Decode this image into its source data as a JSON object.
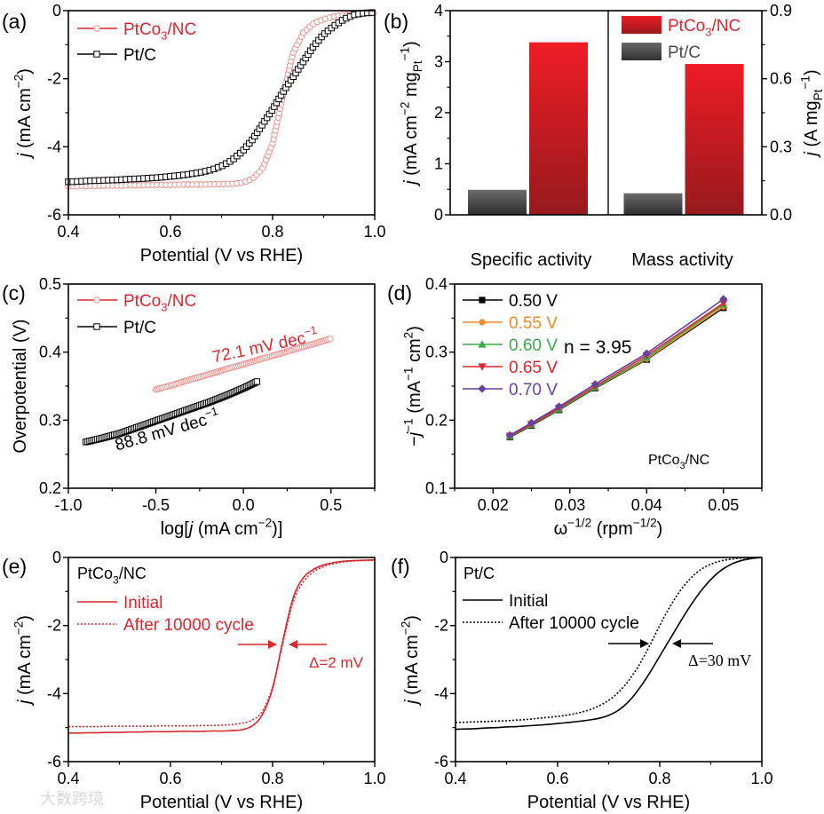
{
  "watermark": "大数跨境",
  "chart_data": [
    {
      "id": "a",
      "panel_label": "(a)",
      "type": "line",
      "xlim": [
        0.4,
        1.0
      ],
      "ylim": [
        -6,
        0
      ],
      "xticks": [
        0.4,
        0.6,
        0.8,
        1.0
      ],
      "xtick_labels": [
        "0.4",
        "0.6",
        "0.8",
        "1.0"
      ],
      "yticks": [
        -6,
        -4,
        -2,
        0
      ],
      "ytick_labels": [
        "-6",
        "-4",
        "-2",
        "0"
      ],
      "xlabel": [
        [
          "Potential (V vs RHE)",
          "n"
        ]
      ],
      "ylabel": [
        [
          "j",
          "i"
        ],
        [
          " (mA cm",
          "n"
        ],
        [
          "−2",
          "sup"
        ],
        [
          ")",
          "n"
        ]
      ],
      "legend": "top-left",
      "x": [
        0.4,
        0.42,
        0.44,
        0.46,
        0.48,
        0.5,
        0.52,
        0.54,
        0.56,
        0.58,
        0.6,
        0.62,
        0.64,
        0.66,
        0.68,
        0.7,
        0.72,
        0.74,
        0.76,
        0.78,
        0.8,
        0.82,
        0.84,
        0.86,
        0.88,
        0.9,
        0.92,
        0.94,
        0.96,
        0.98,
        1.0
      ],
      "series": [
        {
          "name": [
            [
              "PtCo",
              "n"
            ],
            [
              "3",
              "sub"
            ],
            [
              "/NC",
              "n"
            ]
          ],
          "color": "#d7282f",
          "marker_color": "#e8948f",
          "text_color": "#d7282f",
          "marker": "circle-open",
          "dash": "solid",
          "y": [
            -5.16,
            -5.16,
            -5.15,
            -5.15,
            -5.14,
            -5.14,
            -5.13,
            -5.13,
            -5.12,
            -5.12,
            -5.12,
            -5.11,
            -5.11,
            -5.11,
            -5.1,
            -5.1,
            -5.09,
            -5.06,
            -4.95,
            -4.65,
            -3.9,
            -2.5,
            -1.25,
            -0.65,
            -0.38,
            -0.25,
            -0.17,
            -0.13,
            -0.1,
            -0.08,
            -0.07
          ]
        },
        {
          "name": [
            [
              "Pt/C",
              "n"
            ]
          ],
          "color": "#000000",
          "marker_color": "#000000",
          "text_color": "#000000",
          "marker": "square-open",
          "dash": "solid",
          "y": [
            -5.03,
            -5.02,
            -5.0,
            -4.99,
            -4.98,
            -4.97,
            -4.95,
            -4.94,
            -4.92,
            -4.9,
            -4.87,
            -4.84,
            -4.8,
            -4.75,
            -4.68,
            -4.57,
            -4.4,
            -4.15,
            -3.8,
            -3.35,
            -2.9,
            -2.4,
            -1.95,
            -1.5,
            -1.05,
            -0.7,
            -0.45,
            -0.25,
            -0.12,
            -0.07,
            -0.05
          ]
        }
      ]
    },
    {
      "id": "b",
      "panel_label": "(b)",
      "type": "bar",
      "categories": [
        "Specific activity",
        "Mass activity"
      ],
      "ylim": [
        0,
        4
      ],
      "yticks": [
        0,
        1,
        2,
        3,
        4
      ],
      "ytick_labels": [
        "0",
        "1",
        "2",
        "3",
        "4"
      ],
      "ylim_right": [
        0,
        0.9
      ],
      "yticks_right": [
        0,
        0.3,
        0.6,
        0.9
      ],
      "ytick_labels_right": [
        "0.0",
        "0.3",
        "0.6",
        "0.9"
      ],
      "ylabel": [
        [
          "j",
          "i"
        ],
        [
          " (mA cm",
          "n"
        ],
        [
          "−2",
          "sup"
        ],
        [
          " mg",
          "n"
        ],
        [
          "Pt",
          "sub"
        ],
        [
          "−1",
          "sup"
        ],
        [
          ")",
          "n"
        ]
      ],
      "ylabel_right": [
        [
          "j",
          "i"
        ],
        [
          " (A mg",
          "n"
        ],
        [
          "Pt",
          "sub"
        ],
        [
          "−1",
          "sup"
        ],
        [
          ")",
          "n"
        ]
      ],
      "legend": "top-right",
      "series": [
        {
          "name": [
            [
              "Pt/C",
              "n"
            ]
          ],
          "color_top": "#6a6a6a",
          "color_bottom": "#2e2e2e",
          "text_color": "#4a4a4a",
          "values": [
            0.49,
            0.095
          ],
          "axis": [
            "left",
            "right"
          ]
        },
        {
          "name": [
            [
              "PtCo",
              "n"
            ],
            [
              "3",
              "sub"
            ],
            [
              "/NC",
              "n"
            ]
          ],
          "color_top": "#ee1c25",
          "color_bottom": "#961a1d",
          "text_color": "#d7282f",
          "values": [
            3.38,
            0.665
          ],
          "axis": [
            "left",
            "right"
          ]
        }
      ]
    },
    {
      "id": "c",
      "panel_label": "(c)",
      "type": "scatter",
      "xlim": [
        -1.0,
        0.75
      ],
      "ylim": [
        0.2,
        0.5
      ],
      "xticks": [
        -1.0,
        -0.5,
        0.0,
        0.5
      ],
      "xtick_labels": [
        "-1.0",
        "-0.5",
        "0.0",
        "0.5"
      ],
      "yticks": [
        0.2,
        0.3,
        0.4,
        0.5
      ],
      "ytick_labels": [
        "0.2",
        "0.3",
        "0.4",
        "0.5"
      ],
      "xlabel": [
        [
          "log[",
          "n"
        ],
        [
          "j",
          "i"
        ],
        [
          " (mA cm",
          "n"
        ],
        [
          "−2",
          "sup"
        ],
        [
          ")]",
          "n"
        ]
      ],
      "ylabel": [
        [
          "Overpotential (V)",
          "n"
        ]
      ],
      "legend": "top-left",
      "series": [
        {
          "name": [
            [
              "PtCo",
              "n"
            ],
            [
              "3",
              "sub"
            ],
            [
              "/NC",
              "n"
            ]
          ],
          "color": "#d7282f",
          "marker_color": "#e8948f",
          "text_color": "#d7282f",
          "marker": "circle-open",
          "dash": "solid",
          "x": [
            -0.5,
            -0.4,
            -0.3,
            -0.2,
            -0.1,
            0.0,
            0.1,
            0.2,
            0.3,
            0.4,
            0.5
          ],
          "y": [
            0.345,
            0.352,
            0.36,
            0.367,
            0.375,
            0.382,
            0.39,
            0.397,
            0.405,
            0.412,
            0.42
          ]
        },
        {
          "name": [
            [
              "Pt/C",
              "n"
            ]
          ],
          "color": "#000000",
          "marker_color": "#000000",
          "text_color": "#000000",
          "marker": "square-open",
          "dash": "solid",
          "x": [
            -0.9,
            -0.8,
            -0.7,
            -0.6,
            -0.5,
            -0.4,
            -0.3,
            -0.2,
            -0.1,
            0.0,
            0.08
          ],
          "y": [
            0.268,
            0.274,
            0.281,
            0.29,
            0.299,
            0.308,
            0.317,
            0.326,
            0.336,
            0.347,
            0.357
          ]
        }
      ],
      "annotations": [
        {
          "text": [
            [
              "72.1 mV dec",
              "n"
            ],
            [
              "−1",
              "sup"
            ]
          ],
          "color": "#d7282f"
        },
        {
          "text": [
            [
              "88.8 mV dec",
              "n"
            ],
            [
              "−1",
              "sup"
            ]
          ],
          "color": "#000000"
        }
      ]
    },
    {
      "id": "d",
      "panel_label": "(d)",
      "type": "line",
      "xlim": [
        0.015,
        0.055
      ],
      "ylim": [
        0.1,
        0.4
      ],
      "xticks": [
        0.02,
        0.03,
        0.04,
        0.05
      ],
      "xtick_labels": [
        "0.02",
        "0.03",
        "0.04",
        "0.05"
      ],
      "yticks": [
        0.1,
        0.2,
        0.3,
        0.4
      ],
      "ytick_labels": [
        "0.1",
        "0.2",
        "0.3",
        "0.4"
      ],
      "xlabel": [
        [
          "ω",
          "n"
        ],
        [
          "−1/2",
          "sup"
        ],
        [
          " (rpm",
          "n"
        ],
        [
          "−1/2",
          "sup"
        ],
        [
          ")",
          "n"
        ]
      ],
      "ylabel": [
        [
          "−",
          "n"
        ],
        [
          "j",
          "i"
        ],
        [
          "−1",
          "sup"
        ],
        [
          " (mA",
          "n"
        ],
        [
          "−1",
          "sup"
        ],
        [
          " cm",
          "n"
        ],
        [
          "2",
          "sup"
        ],
        [
          ")",
          "n"
        ]
      ],
      "legend": "top-left",
      "x": [
        0.0222,
        0.025,
        0.0286,
        0.0333,
        0.04,
        0.05
      ],
      "series": [
        {
          "name": [
            [
              "0.50 V",
              "n"
            ]
          ],
          "color": "#000000",
          "marker_color": "#000000",
          "text_color": "#000000",
          "marker": "square",
          "dash": "solid",
          "y": [
            0.175,
            0.192,
            0.215,
            0.247,
            0.289,
            0.365
          ]
        },
        {
          "name": [
            [
              "0.55 V",
              "n"
            ]
          ],
          "color": "#f08a24",
          "marker_color": "#f08a24",
          "text_color": "#f08a24",
          "marker": "circle",
          "dash": "solid",
          "y": [
            0.176,
            0.193,
            0.216,
            0.248,
            0.29,
            0.367
          ]
        },
        {
          "name": [
            [
              "0.60 V",
              "n"
            ]
          ],
          "color": "#3aa845",
          "marker_color": "#3aa845",
          "text_color": "#3aa845",
          "marker": "triangle",
          "dash": "solid",
          "y": [
            0.176,
            0.193,
            0.216,
            0.248,
            0.292,
            0.37
          ]
        },
        {
          "name": [
            [
              "0.65 V",
              "n"
            ]
          ],
          "color": "#e0262c",
          "marker_color": "#e0262c",
          "text_color": "#e0262c",
          "marker": "triangle-down",
          "dash": "solid",
          "y": [
            0.177,
            0.194,
            0.218,
            0.25,
            0.295,
            0.372
          ]
        },
        {
          "name": [
            [
              "0.70 V",
              "n"
            ]
          ],
          "color": "#6a3fa0",
          "marker_color": "#6a3fa0",
          "text_color": "#6a3fa0",
          "marker": "diamond",
          "dash": "solid",
          "y": [
            0.178,
            0.196,
            0.22,
            0.253,
            0.298,
            0.378
          ]
        }
      ],
      "annotations": [
        {
          "text": [
            [
              "n = 3.95",
              "n"
            ]
          ],
          "color": "#000000"
        },
        {
          "text": [
            [
              "PtCo",
              "n"
            ],
            [
              "3",
              "sub"
            ],
            [
              "/NC",
              "n"
            ]
          ],
          "color": "#000000"
        }
      ]
    },
    {
      "id": "e",
      "panel_label": "(e)",
      "type": "line",
      "title": [
        [
          "PtCo",
          "n"
        ],
        [
          "3",
          "sub"
        ],
        [
          "/NC",
          "n"
        ]
      ],
      "xlim": [
        0.4,
        1.0
      ],
      "ylim": [
        -6,
        0
      ],
      "xticks": [
        0.4,
        0.6,
        0.8,
        1.0
      ],
      "xtick_labels": [
        "0.4",
        "0.6",
        "0.8",
        "1.0"
      ],
      "yticks": [
        -6,
        -4,
        -2,
        0
      ],
      "ytick_labels": [
        "-6",
        "-4",
        "-2",
        "0"
      ],
      "xlabel": [
        [
          "Potential (V vs RHE)",
          "n"
        ]
      ],
      "ylabel": [
        [
          "j",
          "i"
        ],
        [
          " (mA cm",
          "n"
        ],
        [
          "−2",
          "sup"
        ],
        [
          ")",
          "n"
        ]
      ],
      "legend": "top-left",
      "x": [
        0.4,
        0.42,
        0.44,
        0.46,
        0.48,
        0.5,
        0.52,
        0.54,
        0.56,
        0.58,
        0.6,
        0.62,
        0.64,
        0.66,
        0.68,
        0.7,
        0.72,
        0.74,
        0.76,
        0.78,
        0.8,
        0.82,
        0.84,
        0.86,
        0.88,
        0.9,
        0.92,
        0.94,
        0.96,
        0.98,
        1.0
      ],
      "series": [
        {
          "name": [
            [
              "Initial",
              "n"
            ]
          ],
          "color": "#d7282f",
          "text_color": "#d7282f",
          "marker": "none",
          "dash": "solid",
          "y": [
            -5.16,
            -5.16,
            -5.15,
            -5.15,
            -5.14,
            -5.14,
            -5.13,
            -5.13,
            -5.12,
            -5.12,
            -5.12,
            -5.11,
            -5.11,
            -5.11,
            -5.1,
            -5.1,
            -5.09,
            -5.06,
            -4.95,
            -4.62,
            -3.85,
            -2.45,
            -1.2,
            -0.6,
            -0.35,
            -0.22,
            -0.15,
            -0.11,
            -0.09,
            -0.08,
            -0.07
          ]
        },
        {
          "name": [
            [
              "After 10000 cycle",
              "n"
            ]
          ],
          "color": "#d7282f",
          "text_color": "#d7282f",
          "marker": "none",
          "dash": "dotted",
          "y": [
            -4.97,
            -4.97,
            -4.97,
            -4.97,
            -4.96,
            -4.96,
            -4.96,
            -4.96,
            -4.96,
            -4.95,
            -4.95,
            -4.95,
            -4.95,
            -4.94,
            -4.94,
            -4.93,
            -4.91,
            -4.87,
            -4.78,
            -4.52,
            -3.8,
            -2.52,
            -1.32,
            -0.72,
            -0.42,
            -0.27,
            -0.18,
            -0.13,
            -0.1,
            -0.09,
            -0.08
          ]
        }
      ],
      "annotations": [
        {
          "text": [
            [
              "Δ=2 mV",
              "n"
            ]
          ],
          "color": "#d7282f"
        }
      ]
    },
    {
      "id": "f",
      "panel_label": "(f)",
      "type": "line",
      "title": [
        [
          "Pt/C",
          "n"
        ]
      ],
      "xlim": [
        0.4,
        1.0
      ],
      "ylim": [
        -6,
        0
      ],
      "xticks": [
        0.4,
        0.6,
        0.8,
        1.0
      ],
      "xtick_labels": [
        "0.4",
        "0.6",
        "0.8",
        "1.0"
      ],
      "yticks": [
        -6,
        -4,
        -2,
        0
      ],
      "ytick_labels": [
        "-6",
        "-4",
        "-2",
        "0"
      ],
      "xlabel": [
        [
          "Potential (V vs RHE)",
          "n"
        ]
      ],
      "ylabel": [
        [
          "j",
          "i"
        ],
        [
          " (mA cm",
          "n"
        ],
        [
          "−2",
          "sup"
        ],
        [
          ")",
          "n"
        ]
      ],
      "legend": "top-left",
      "x": [
        0.4,
        0.42,
        0.44,
        0.46,
        0.48,
        0.5,
        0.52,
        0.54,
        0.56,
        0.58,
        0.6,
        0.62,
        0.64,
        0.66,
        0.68,
        0.7,
        0.72,
        0.74,
        0.76,
        0.78,
        0.8,
        0.82,
        0.84,
        0.86,
        0.88,
        0.9,
        0.92,
        0.94,
        0.96,
        0.98,
        1.0
      ],
      "series": [
        {
          "name": [
            [
              "Initial",
              "n"
            ]
          ],
          "color": "#000000",
          "text_color": "#000000",
          "marker": "none",
          "dash": "solid",
          "y": [
            -5.05,
            -5.04,
            -5.03,
            -5.01,
            -5.0,
            -4.98,
            -4.97,
            -4.95,
            -4.93,
            -4.91,
            -4.88,
            -4.85,
            -4.82,
            -4.78,
            -4.73,
            -4.64,
            -4.48,
            -4.22,
            -3.85,
            -3.4,
            -2.9,
            -2.4,
            -1.9,
            -1.42,
            -1.0,
            -0.65,
            -0.38,
            -0.2,
            -0.09,
            -0.03,
            0.0
          ]
        },
        {
          "name": [
            [
              "After 10000 cycle",
              "n"
            ]
          ],
          "color": "#000000",
          "text_color": "#000000",
          "marker": "none",
          "dash": "dotted",
          "y": [
            -4.85,
            -4.84,
            -4.83,
            -4.82,
            -4.81,
            -4.8,
            -4.78,
            -4.76,
            -4.73,
            -4.7,
            -4.67,
            -4.63,
            -4.57,
            -4.49,
            -4.37,
            -4.2,
            -3.95,
            -3.6,
            -3.15,
            -2.6,
            -2.0,
            -1.45,
            -0.98,
            -0.62,
            -0.36,
            -0.2,
            -0.1,
            -0.05,
            -0.02,
            -0.01,
            0.0
          ]
        }
      ],
      "annotations": [
        {
          "text": [
            [
              "Δ=30 mV",
              "n"
            ]
          ],
          "color": "#000000"
        }
      ]
    }
  ]
}
